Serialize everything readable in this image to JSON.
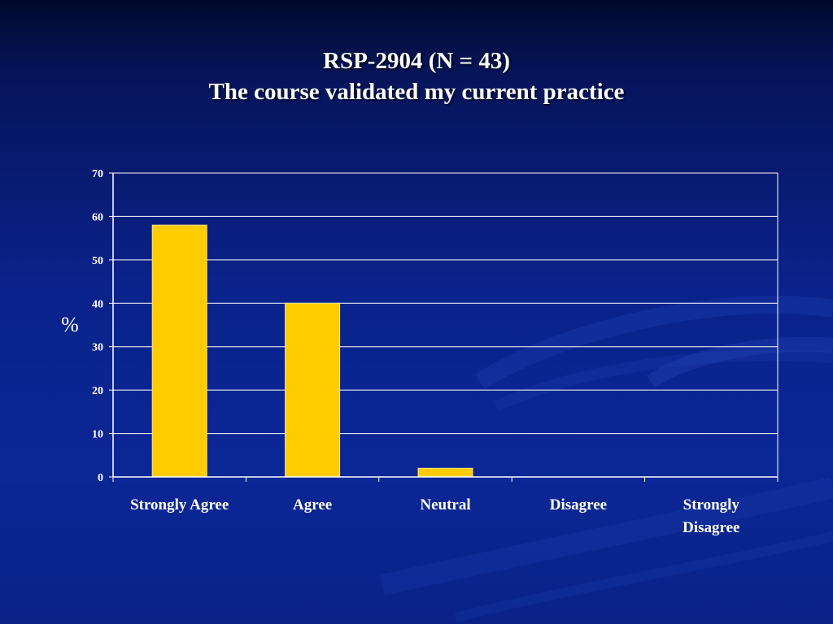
{
  "slide": {
    "title_line1": "RSP-2904 (N = 43)",
    "title_line2": "The course validated my current practice"
  },
  "colors": {
    "bar": "#ffcc00",
    "background": "#0a228a",
    "text": "#ffffff",
    "gridline": "#ffffff"
  },
  "chart_data": {
    "type": "bar",
    "title": "RSP-2904 (N = 43) The course validated my current practice",
    "categories": [
      "Strongly Agree",
      "Agree",
      "Neutral",
      "Disagree",
      "Strongly Disagree"
    ],
    "category_lines": [
      [
        "Strongly Agree"
      ],
      [
        "Agree"
      ],
      [
        "Neutral"
      ],
      [
        "Disagree"
      ],
      [
        "Strongly",
        "Disagree"
      ]
    ],
    "values": [
      58,
      40,
      2,
      0,
      0
    ],
    "xlabel": "",
    "ylabel": "%",
    "ylim": [
      0,
      70
    ],
    "yticks": [
      0,
      10,
      20,
      30,
      40,
      50,
      60,
      70
    ],
    "grid": true,
    "legend": "none"
  }
}
